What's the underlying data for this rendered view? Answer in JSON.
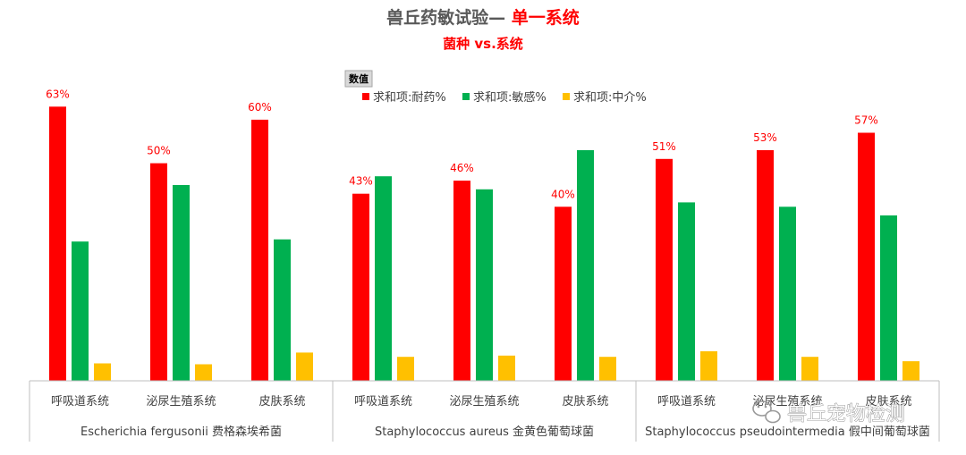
{
  "chart_data": {
    "type": "bar",
    "title": "兽丘药敏试验— ",
    "title_highlight": "单一系统",
    "subtitle": "菌种 vs.系统",
    "field_button": "数值",
    "legend_position": "top",
    "grid": false,
    "ylim": [
      0,
      0.68
    ],
    "categories": [
      "呼吸道系统",
      "泌尿生殖系统",
      "皮肤系统",
      "呼吸道系统",
      "泌尿生殖系统",
      "皮肤系统",
      "呼吸道系统",
      "泌尿生殖系统",
      "皮肤系统"
    ],
    "groups": [
      {
        "label": "Escherichia fergusonii 费格森埃希菌",
        "span": 3
      },
      {
        "label": "Staphylococcus aureus 金黄色葡萄球菌",
        "span": 3
      },
      {
        "label": "Staphylococcus pseudointermedia 假中间葡萄球菌",
        "span": 3
      }
    ],
    "series": [
      {
        "name": "求和项:耐药%",
        "color": "#ff0000",
        "values": [
          0.63,
          0.5,
          0.6,
          0.43,
          0.46,
          0.4,
          0.51,
          0.53,
          0.57
        ],
        "data_labels": [
          "63%",
          "50%",
          "60%",
          "43%",
          "46%",
          "40%",
          "51%",
          "53%",
          "57%"
        ]
      },
      {
        "name": "求和项:敏感%",
        "color": "#00b050",
        "values": [
          0.32,
          0.45,
          0.325,
          0.47,
          0.44,
          0.53,
          0.41,
          0.4,
          0.38
        ]
      },
      {
        "name": "求和项:中介%",
        "color": "#ffc000",
        "values": [
          0.04,
          0.038,
          0.065,
          0.055,
          0.058,
          0.055,
          0.068,
          0.055,
          0.045
        ]
      }
    ]
  },
  "watermark": {
    "text": "兽丘宠物检测",
    "icon": "wechat-icon"
  }
}
